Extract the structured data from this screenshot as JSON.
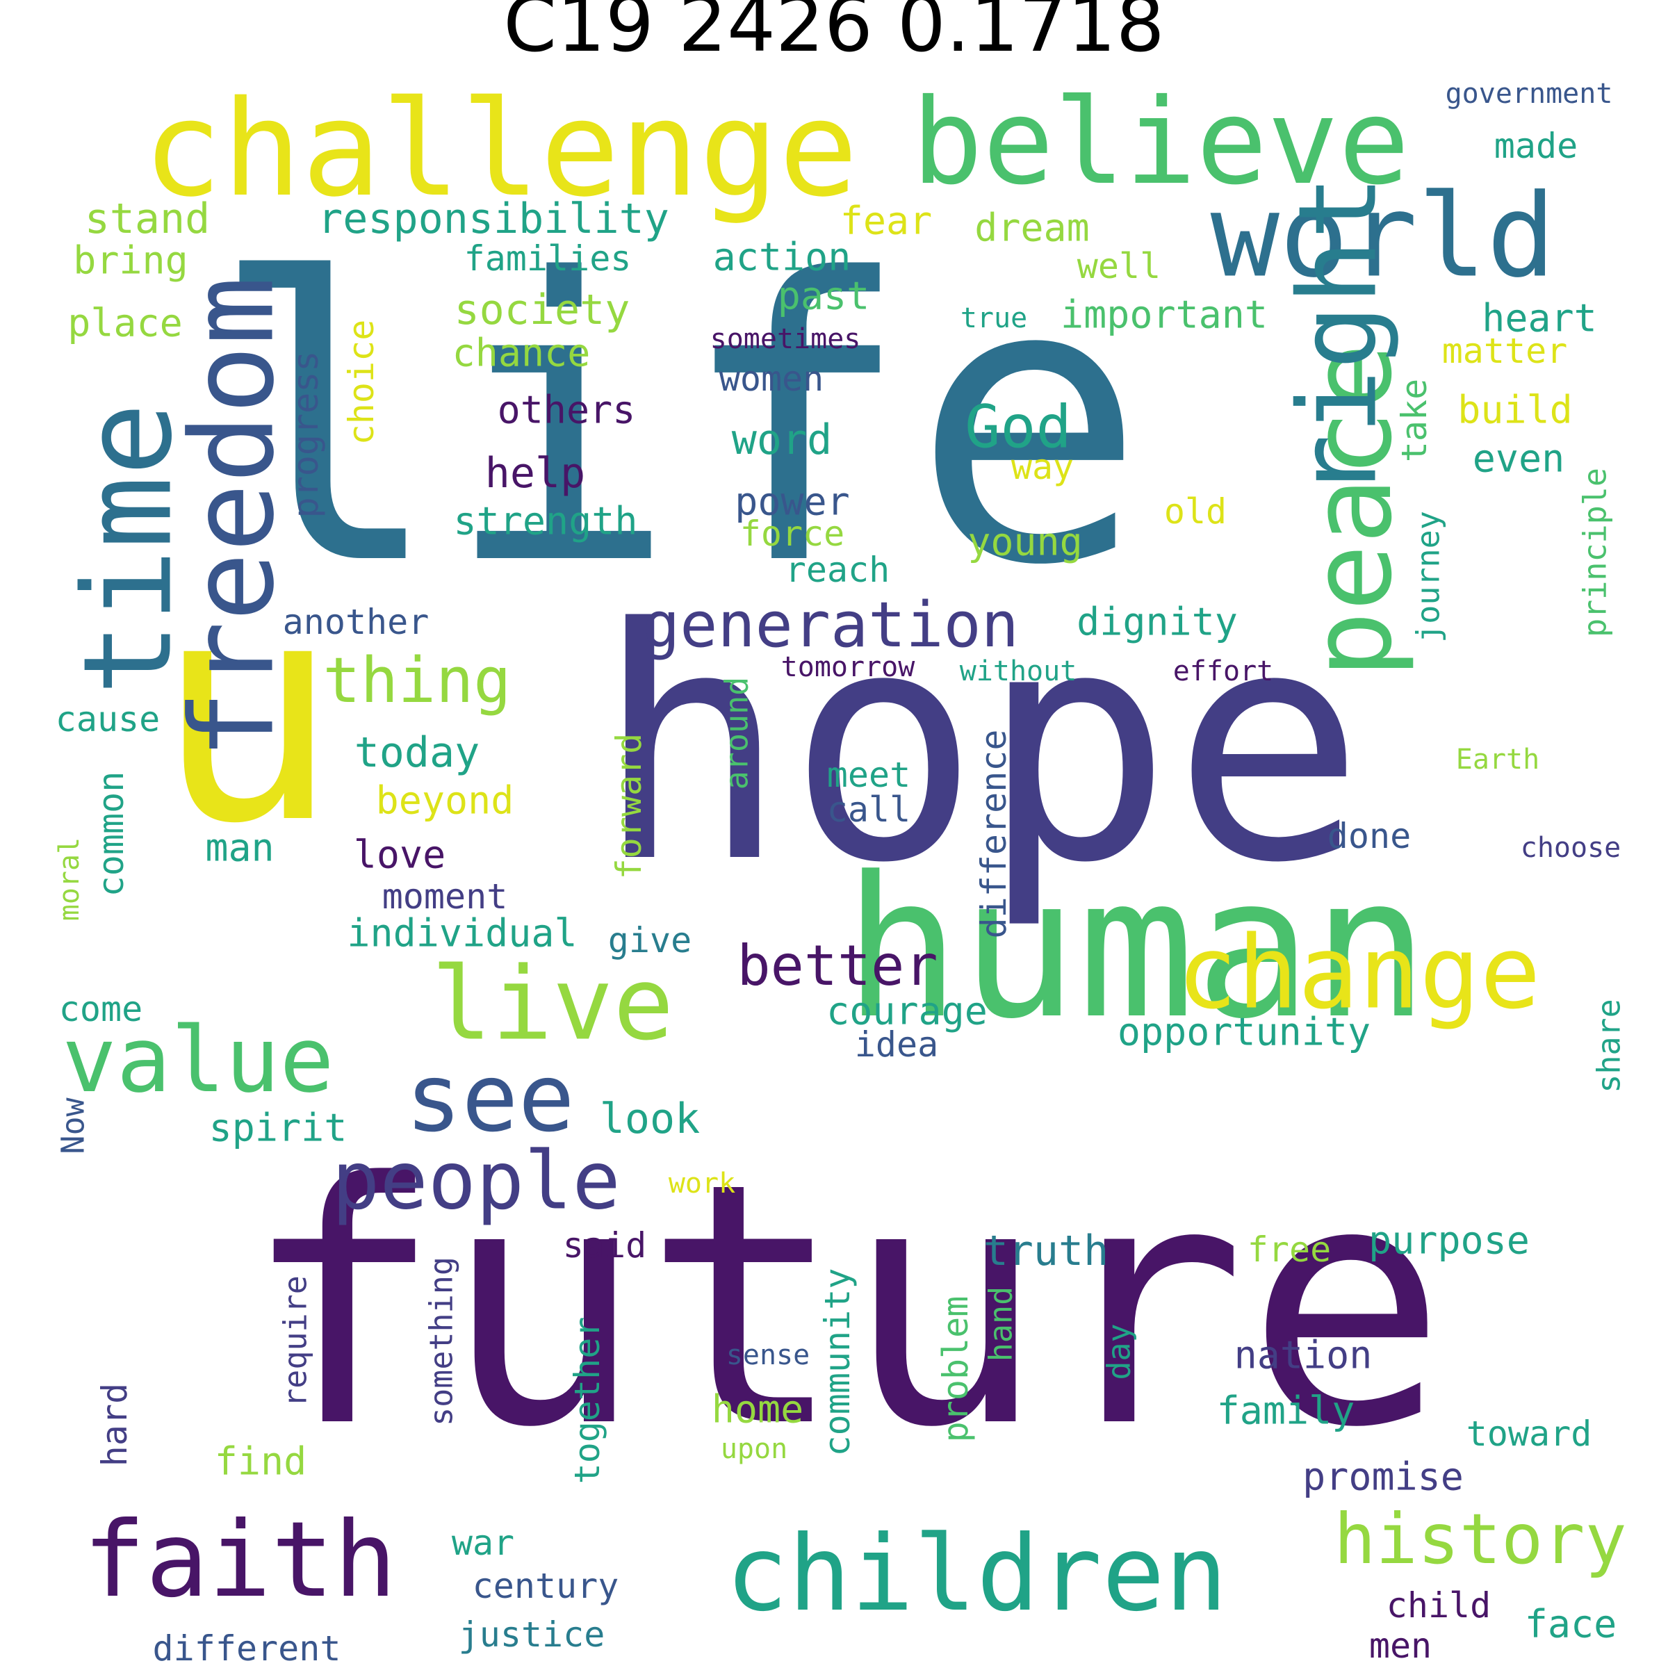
{
  "title": "C19 2426 0.1718",
  "colors": {
    "background": "#ffffff",
    "title": "#000000",
    "dark_purple": "#481567",
    "indigo": "#433e85",
    "blue": "#2d708e",
    "slate": "#39568c",
    "teal": "#20a387",
    "sea": "#287d8e",
    "green": "#4ac16d",
    "light_green": "#95d840",
    "yellow": "#e8e419",
    "gold": "#dde318"
  },
  "words": [
    "life",
    "hope",
    "future",
    "u",
    "human",
    "challenge",
    "believe",
    "world",
    "time",
    "freedom",
    "peace",
    "right",
    "change",
    "children",
    "faith",
    "live",
    "value",
    "see",
    "people",
    "history",
    "generation",
    "thing",
    "better",
    "God",
    "responsibility",
    "stand",
    "bring",
    "place",
    "families",
    "society",
    "chance",
    "action",
    "past",
    "fear",
    "dream",
    "well",
    "true",
    "important",
    "sometimes",
    "heart",
    "matter",
    "made",
    "government",
    "progress",
    "choice",
    "others",
    "women",
    "word",
    "help",
    "power",
    "strength",
    "force",
    "reach",
    "way",
    "old",
    "young",
    "build",
    "even",
    "take",
    "journey",
    "principle",
    "another",
    "dignity",
    "tomorrow",
    "without",
    "effort",
    "cause",
    "today",
    "beyond",
    "common",
    "moral",
    "man",
    "love",
    "moment",
    "individual",
    "meet",
    "call",
    "around",
    "forward",
    "difference",
    "done",
    "Earth",
    "choose",
    "give",
    "courage",
    "idea",
    "opportunity",
    "share",
    "come",
    "spirit",
    "look",
    "Now",
    "work",
    "said",
    "truth",
    "free",
    "purpose",
    "something",
    "require",
    "together",
    "community",
    "problem",
    "hand",
    "day",
    "sense",
    "nation",
    "family",
    "home",
    "upon",
    "find",
    "hard",
    "toward",
    "promise",
    "child",
    "war",
    "century",
    "justice",
    "different",
    "men",
    "face"
  ]
}
